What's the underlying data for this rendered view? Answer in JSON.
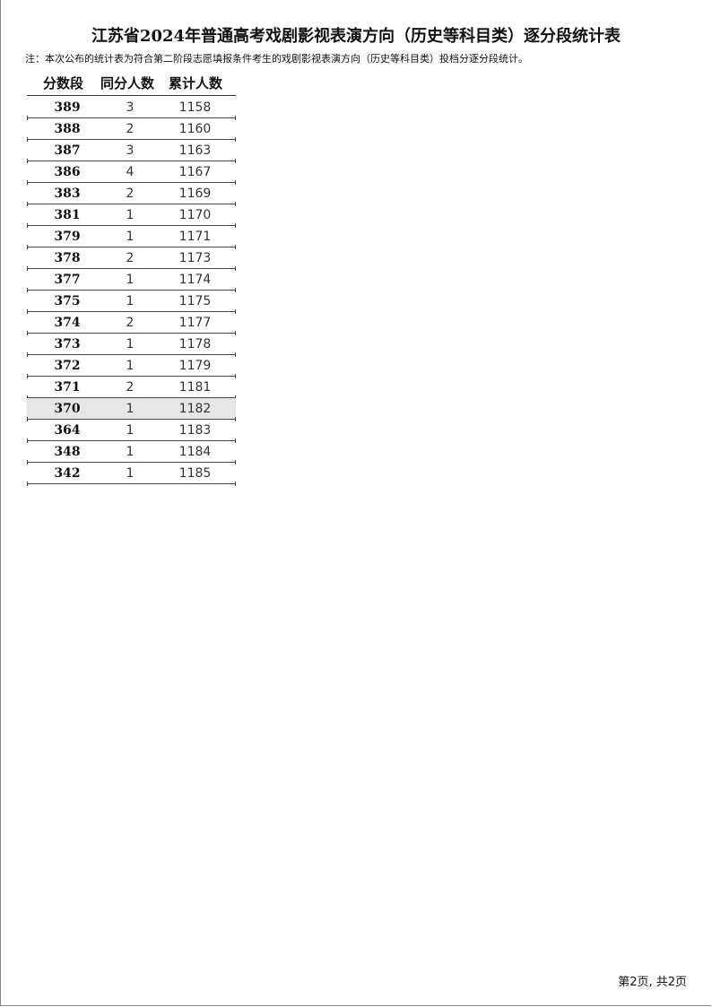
{
  "title": "江苏省2024年普通高考戏剧影视表演方向（历史等科目类）逐分段统计表",
  "note": "注：本次公布的统计表为符合第二阶段志愿填报条件考生的戏剧影视表演方向（历史等科目类）投档分逐分段统计。",
  "headers": [
    "分数段",
    "同分人数",
    "累计人数"
  ],
  "rows": [
    [
      "389",
      "3",
      "1158"
    ],
    [
      "388",
      "2",
      "1160"
    ],
    [
      "387",
      "3",
      "1163"
    ],
    [
      "386",
      "4",
      "1167"
    ],
    [
      "383",
      "2",
      "1169"
    ],
    [
      "381",
      "1",
      "1170"
    ],
    [
      "379",
      "1",
      "1171"
    ],
    [
      "378",
      "2",
      "1173"
    ],
    [
      "377",
      "1",
      "1174"
    ],
    [
      "375",
      "1",
      "1175"
    ],
    [
      "374",
      "2",
      "1177"
    ],
    [
      "373",
      "1",
      "1178"
    ],
    [
      "372",
      "1",
      "1179"
    ],
    [
      "371",
      "2",
      "1181"
    ],
    [
      "370",
      "1",
      "1182"
    ],
    [
      "364",
      "1",
      "1183"
    ],
    [
      "348",
      "1",
      "1184"
    ],
    [
      "342",
      "1",
      "1185"
    ]
  ],
  "highlighted_row": "370",
  "footer": "第2页, 共2页"
}
